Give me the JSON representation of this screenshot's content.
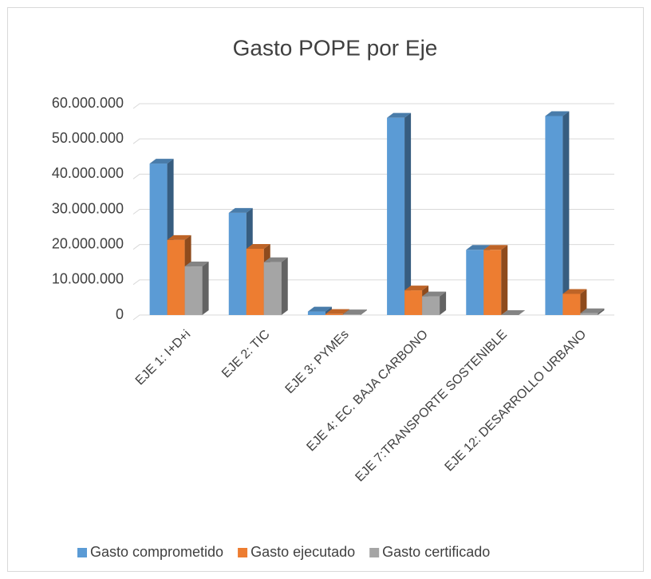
{
  "chart_data": {
    "type": "bar3d",
    "title": "Gasto POPE por Eje",
    "categories": [
      "EJE 1: I+D+i",
      "EJE 2: TIC",
      "EJE 3: PYMEs",
      "EJE 4: EC. BAJA CARBONO",
      "EJE 7:TRANSPORTE SOSTENIBLE",
      "EJE 12: DESARROLLO URBANO"
    ],
    "series": [
      {
        "name": "Gasto comprometido",
        "color": "#5b9bd5",
        "values": [
          43000000,
          29000000,
          1000000,
          56000000,
          18500000,
          56500000
        ]
      },
      {
        "name": "Gasto ejecutado",
        "color": "#ed7d31",
        "values": [
          21300000,
          18800000,
          300000,
          7000000,
          18500000,
          6000000
        ]
      },
      {
        "name": "Gasto certificado",
        "color": "#a5a5a5",
        "values": [
          13800000,
          15000000,
          200000,
          5300000,
          0,
          500000
        ]
      }
    ],
    "ylim": [
      0,
      60000000
    ],
    "yticks": [
      0,
      {
        "value": 10000000,
        "label": "10.000.000"
      },
      {
        "value": 20000000,
        "label": "20.000.000"
      },
      {
        "value": 30000000,
        "label": "30.000.000"
      },
      {
        "value": 40000000,
        "label": "40.000.000"
      },
      {
        "value": 50000000,
        "label": "50.000.000"
      },
      {
        "value": 60000000,
        "label": "60.000.000"
      }
    ],
    "grid": true,
    "legend": "bottom"
  }
}
